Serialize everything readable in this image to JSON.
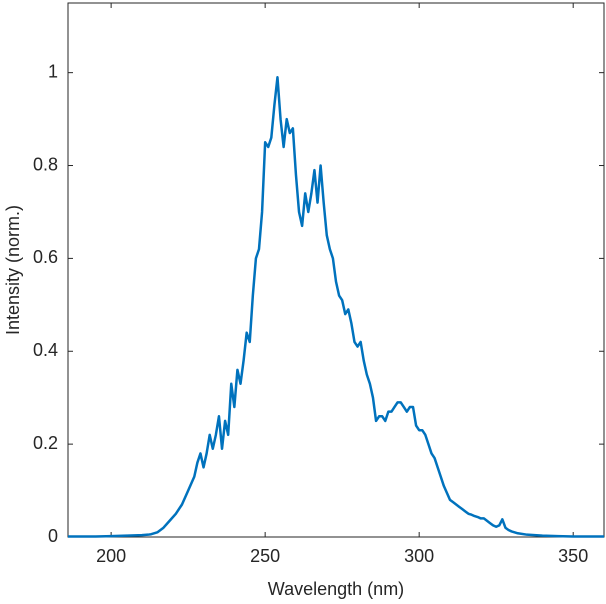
{
  "chart_data": {
    "type": "line",
    "x_label": "Wavelength (nm)",
    "y_label": "Intensity (norm.)",
    "xlim": [
      186,
      360
    ],
    "ylim": [
      0,
      1.15
    ],
    "xticks": [
      200,
      250,
      300,
      350
    ],
    "yticks": [
      0,
      0.2,
      0.4,
      0.6,
      0.8,
      1
    ],
    "grid": false,
    "box": true,
    "series": [
      {
        "color": "#0072BD",
        "x": [
          186,
          190,
          195,
          200,
          205,
          210,
          212,
          213,
          215,
          217,
          219,
          221,
          223,
          225,
          227,
          228,
          229,
          230,
          231,
          232,
          233,
          234,
          235,
          236,
          237,
          238,
          239,
          240,
          241,
          242,
          243,
          244,
          245,
          246,
          247,
          248,
          249,
          250,
          251,
          252,
          253,
          254,
          255,
          256,
          257,
          258,
          259,
          260,
          261,
          262,
          263,
          264,
          265,
          266,
          267,
          268,
          269,
          270,
          271,
          272,
          273,
          274,
          275,
          276,
          277,
          278,
          279,
          280,
          281,
          282,
          283,
          284,
          285,
          286,
          287,
          288,
          289,
          290,
          291,
          292,
          293,
          294,
          295,
          296,
          297,
          298,
          299,
          300,
          301,
          302,
          303,
          304,
          305,
          306,
          307,
          308,
          309,
          310,
          311,
          312,
          313,
          314,
          315,
          316,
          317,
          318,
          319,
          320,
          321,
          322,
          323,
          324,
          325,
          326,
          327,
          328,
          329,
          330,
          332,
          335,
          340,
          345,
          350,
          355,
          360
        ],
        "values": [
          0.001,
          0.001,
          0.001,
          0.002,
          0.003,
          0.004,
          0.005,
          0.006,
          0.01,
          0.02,
          0.035,
          0.05,
          0.07,
          0.1,
          0.13,
          0.16,
          0.18,
          0.15,
          0.18,
          0.22,
          0.19,
          0.22,
          0.26,
          0.19,
          0.25,
          0.22,
          0.33,
          0.28,
          0.36,
          0.33,
          0.38,
          0.44,
          0.42,
          0.52,
          0.6,
          0.62,
          0.7,
          0.85,
          0.84,
          0.86,
          0.93,
          0.99,
          0.9,
          0.84,
          0.9,
          0.87,
          0.88,
          0.78,
          0.7,
          0.67,
          0.74,
          0.7,
          0.74,
          0.79,
          0.72,
          0.8,
          0.72,
          0.65,
          0.62,
          0.6,
          0.55,
          0.52,
          0.51,
          0.48,
          0.49,
          0.46,
          0.42,
          0.41,
          0.42,
          0.38,
          0.35,
          0.33,
          0.3,
          0.25,
          0.26,
          0.26,
          0.25,
          0.27,
          0.27,
          0.28,
          0.29,
          0.29,
          0.28,
          0.27,
          0.28,
          0.28,
          0.24,
          0.23,
          0.23,
          0.22,
          0.2,
          0.18,
          0.17,
          0.15,
          0.13,
          0.11,
          0.095,
          0.08,
          0.075,
          0.07,
          0.065,
          0.06,
          0.055,
          0.05,
          0.048,
          0.045,
          0.043,
          0.04,
          0.04,
          0.035,
          0.03,
          0.025,
          0.022,
          0.025,
          0.038,
          0.02,
          0.015,
          0.012,
          0.008,
          0.005,
          0.003,
          0.002,
          0.001,
          0.001,
          0.001
        ]
      }
    ]
  }
}
